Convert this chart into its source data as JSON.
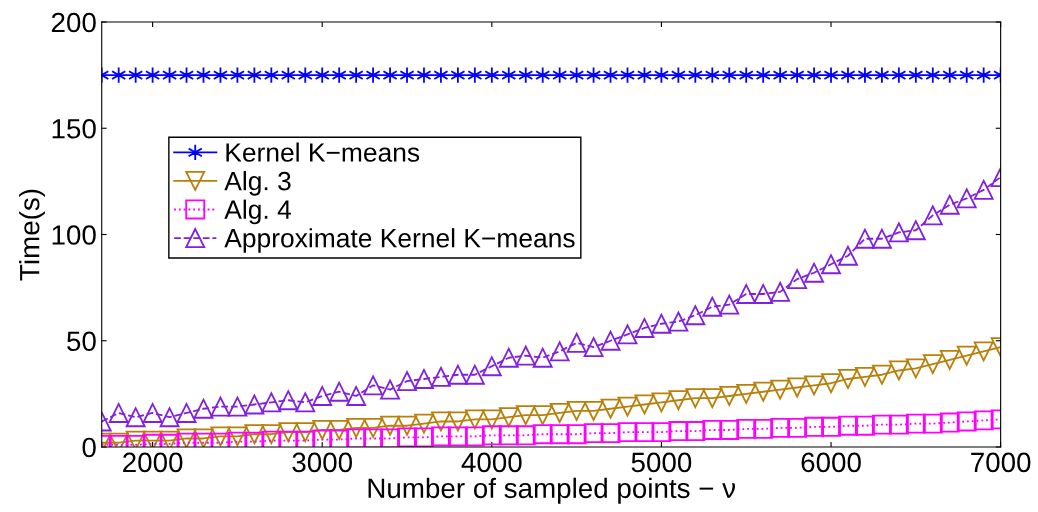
{
  "chart_data": {
    "type": "line",
    "xlabel": "Number of sampled points − ν",
    "ylabel": "Time(s)",
    "x": [
      1700,
      1800,
      1900,
      2000,
      2100,
      2200,
      2300,
      2400,
      2500,
      2600,
      2700,
      2800,
      2900,
      3000,
      3100,
      3200,
      3300,
      3400,
      3500,
      3600,
      3700,
      3800,
      3900,
      4000,
      4100,
      4200,
      4300,
      4400,
      4500,
      4600,
      4700,
      4800,
      4900,
      5000,
      5100,
      5200,
      5300,
      5400,
      5500,
      5600,
      5700,
      5800,
      5900,
      6000,
      6100,
      6200,
      6300,
      6400,
      6500,
      6600,
      6700,
      6800,
      6900,
      7000
    ],
    "series": [
      {
        "name": "Kernel K−means",
        "color": "#0000ff",
        "marker": "cross",
        "line_style": "solid",
        "values": [
          175,
          175,
          175,
          175,
          175,
          175,
          175,
          175,
          175,
          175,
          175,
          175,
          175,
          175,
          175,
          175,
          175,
          175,
          175,
          175,
          175,
          175,
          175,
          175,
          175,
          175,
          175,
          175,
          175,
          175,
          175,
          175,
          175,
          175,
          175,
          175,
          175,
          175,
          175,
          175,
          175,
          175,
          175,
          175,
          175,
          175,
          175,
          175,
          175,
          175,
          175,
          175,
          175,
          175
        ]
      },
      {
        "name": "Alg. 3",
        "color": "#b8800a",
        "marker": "triangle_down",
        "line_style": "solid",
        "values": [
          2,
          2,
          3,
          3,
          3,
          4,
          4,
          5,
          5,
          6,
          6,
          7,
          7,
          8,
          8,
          9,
          9,
          10,
          10,
          11,
          12,
          12,
          13,
          13,
          14,
          15,
          15,
          16,
          17,
          17,
          18,
          19,
          20,
          21,
          22,
          23,
          23,
          24,
          25,
          26,
          27,
          28,
          29,
          30,
          32,
          33,
          34,
          36,
          37,
          39,
          41,
          43,
          45,
          47
        ]
      },
      {
        "name": "Alg. 4",
        "color": "#ff00ff",
        "marker": "square",
        "line_style": "dotted",
        "values": [
          1,
          1,
          1,
          1.5,
          1.5,
          2,
          2,
          2,
          2.5,
          2.5,
          3,
          3,
          3,
          3.5,
          3.5,
          4,
          4,
          4,
          4.5,
          4.5,
          5,
          5,
          5,
          5.5,
          5.5,
          5.5,
          6,
          6,
          6,
          6.5,
          6.5,
          7,
          7,
          7,
          7.5,
          7.5,
          8,
          8,
          8.5,
          8.5,
          9,
          9,
          9.5,
          9.5,
          10,
          10,
          10.5,
          10.5,
          11,
          11,
          11.5,
          12,
          12.5,
          13
        ]
      },
      {
        "name": "Approximate Kernel K−means",
        "color": "#8020e0",
        "marker": "triangle",
        "line_style": "dashed",
        "values": [
          12,
          16,
          14,
          16,
          14,
          16,
          18,
          19,
          19,
          20,
          21,
          22,
          21,
          24,
          26,
          24,
          29,
          27,
          31,
          32,
          33,
          34,
          34,
          38,
          42,
          43,
          42,
          45,
          49,
          47,
          50,
          53,
          56,
          58,
          59,
          62,
          66,
          67,
          72,
          72,
          73,
          79,
          82,
          86,
          90,
          98,
          98,
          101,
          102,
          109,
          114,
          117,
          121,
          127
        ]
      }
    ],
    "xlim": [
      1700,
      7000
    ],
    "ylim": [
      0,
      200
    ],
    "xticks": [
      2000,
      3000,
      4000,
      5000,
      6000,
      7000
    ],
    "yticks": [
      0,
      50,
      100,
      150,
      200
    ],
    "grid": false,
    "legend": "upper left"
  }
}
